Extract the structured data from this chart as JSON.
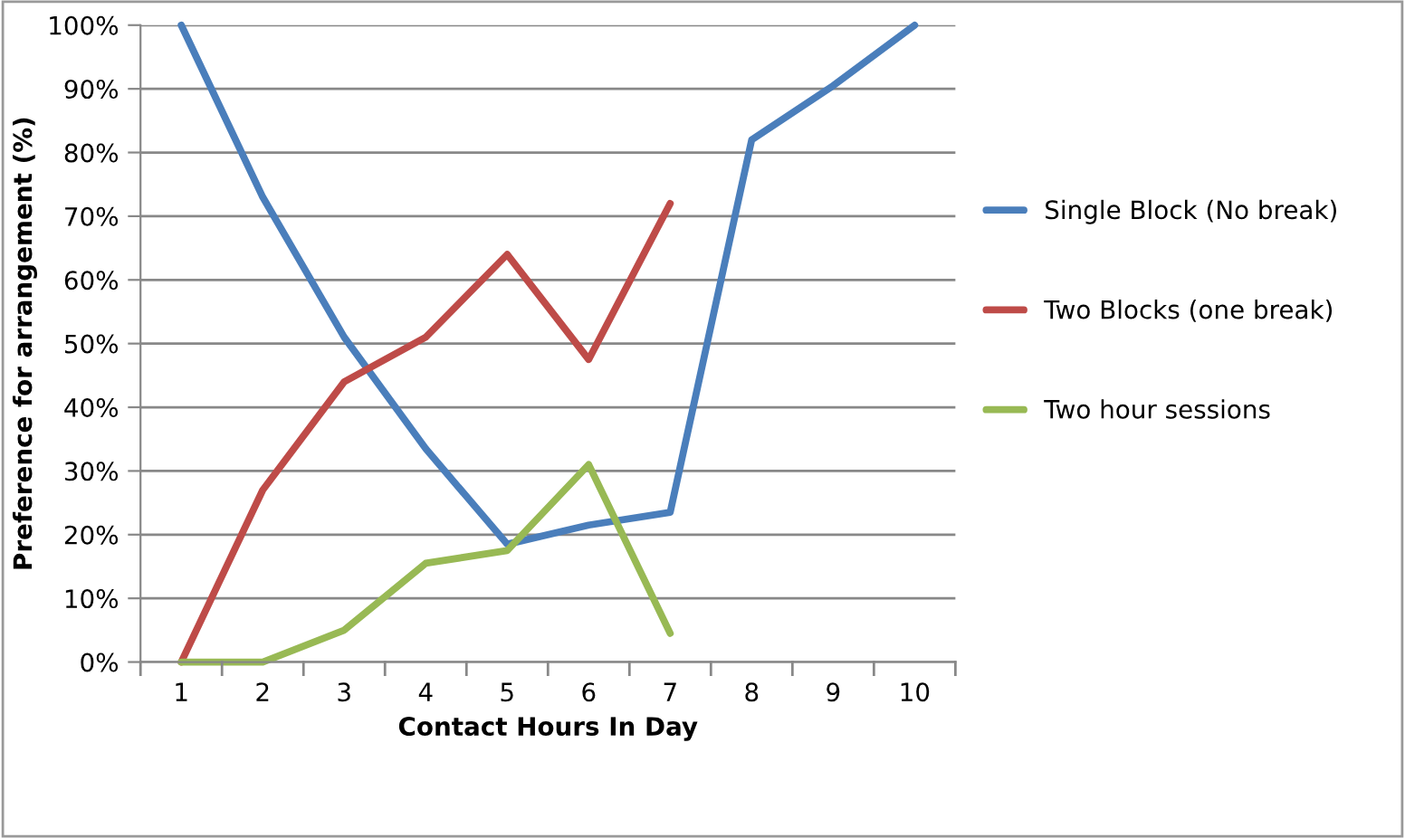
{
  "chart_data": {
    "type": "line",
    "xlabel": "Contact Hours In Day",
    "ylabel": "Preference for arrangement (%)",
    "categories": [
      "1",
      "2",
      "3",
      "4",
      "5",
      "6",
      "7",
      "8",
      "9",
      "10"
    ],
    "series": [
      {
        "name": "Single Block (No break)",
        "color": "#4a7ebb",
        "values": [
          100,
          73,
          51,
          33.5,
          18.5,
          21.5,
          23.5,
          82,
          90.5,
          100
        ]
      },
      {
        "name": "Two Blocks (one break)",
        "color": "#be4b48",
        "values": [
          0,
          27,
          44,
          51,
          64,
          47.5,
          72,
          null,
          null,
          null
        ]
      },
      {
        "name": "Two hour sessions",
        "color": "#98b954",
        "values": [
          0,
          0,
          5,
          15.5,
          17.5,
          31,
          4.5,
          null,
          null,
          null
        ]
      }
    ],
    "ylim": [
      0,
      100
    ],
    "yticks": [
      {
        "value": 0,
        "label": "0%"
      },
      {
        "value": 10,
        "label": "10%"
      },
      {
        "value": 20,
        "label": "20%"
      },
      {
        "value": 30,
        "label": "30%"
      },
      {
        "value": 40,
        "label": "40%"
      },
      {
        "value": 50,
        "label": "50%"
      },
      {
        "value": 60,
        "label": "60%"
      },
      {
        "value": 70,
        "label": "70%"
      },
      {
        "value": 80,
        "label": "80%"
      },
      {
        "value": 90,
        "label": "90%"
      },
      {
        "value": 100,
        "label": "100%"
      }
    ],
    "grid": "y",
    "legend": "right",
    "marker": "none",
    "line_style": "solid"
  }
}
